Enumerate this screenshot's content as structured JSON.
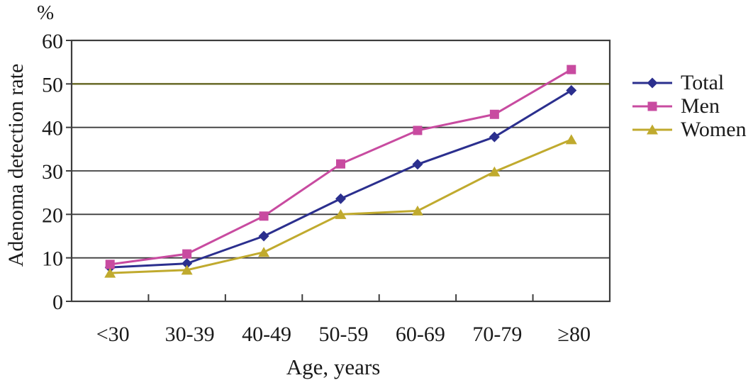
{
  "figure": {
    "percent_label": "%",
    "y_axis_title": "Adenoma detection rate",
    "x_axis_title": "Age, years"
  },
  "chart_data": {
    "type": "line",
    "title": "",
    "xlabel": "Age, years",
    "ylabel": "Adenoma detection rate",
    "y_unit": "%",
    "categories": [
      "<30",
      "30-39",
      "40-49",
      "50-59",
      "60-69",
      "70-79",
      "≥80"
    ],
    "ylim": [
      0,
      60
    ],
    "yticks": [
      0,
      10,
      20,
      30,
      40,
      50,
      60
    ],
    "grid": "horizontal",
    "legend_position": "right",
    "gridline_color": "#3d3d3d",
    "axis_color": "#3d3d3d",
    "special_gridline": {
      "value": 50,
      "color": "#6f7032"
    },
    "series": [
      {
        "name": "Total",
        "marker": "diamond",
        "color": "#2b2f8e",
        "values": [
          7.8,
          8.7,
          15.0,
          23.6,
          31.5,
          37.8,
          48.5
        ]
      },
      {
        "name": "Men",
        "marker": "square",
        "color": "#c84ba0",
        "values": [
          8.5,
          10.9,
          19.6,
          31.6,
          39.3,
          43.0,
          53.3
        ]
      },
      {
        "name": "Women",
        "marker": "triangle",
        "color": "#c0aa2e",
        "values": [
          6.5,
          7.2,
          11.3,
          20.0,
          20.8,
          29.8,
          37.2
        ]
      }
    ]
  }
}
